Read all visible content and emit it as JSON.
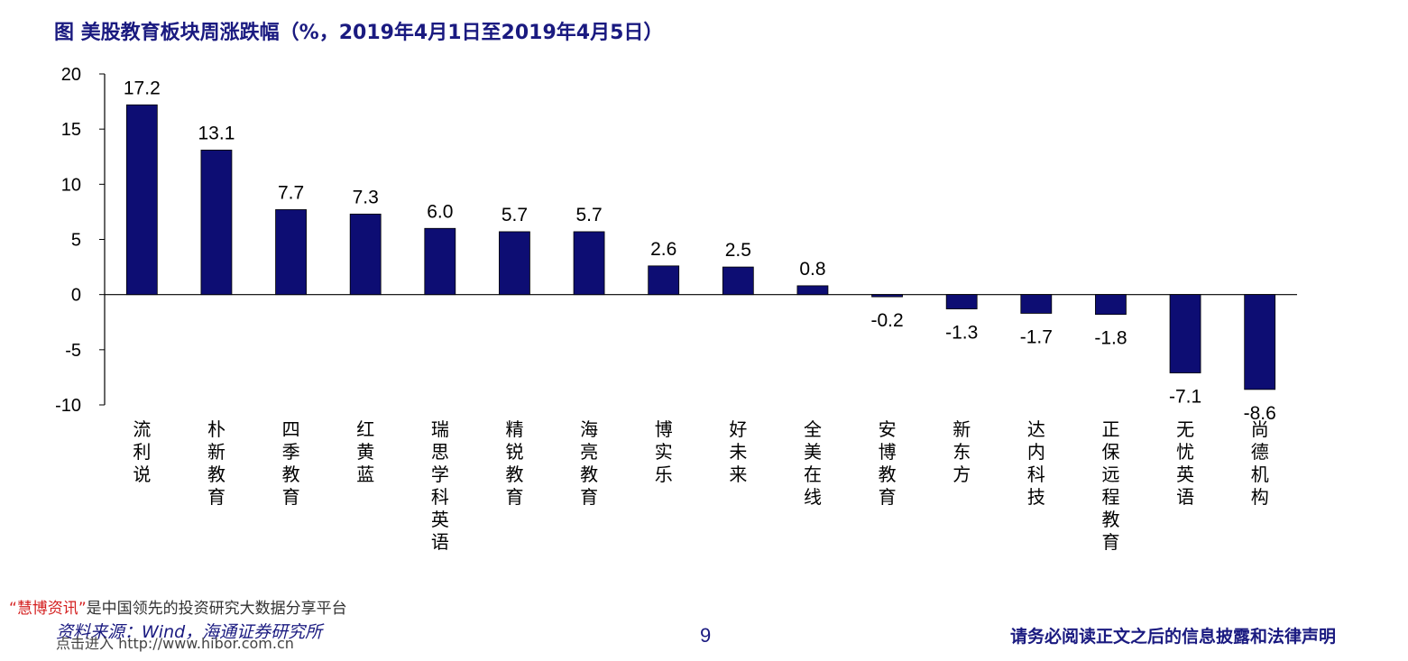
{
  "title": "图  美股教育板块周涨跌幅（%，2019年4月1日至2019年4月5日）",
  "chart_data": {
    "type": "bar",
    "categories": [
      "流利说",
      "朴新教育",
      "四季教育",
      "红黄蓝",
      "瑞思学科英语",
      "精锐教育",
      "海亮教育",
      "博实乐",
      "好未来",
      "全美在线",
      "安博教育",
      "新东方",
      "达内科技",
      "正保远程教育",
      "无忧英语",
      "尚德机构"
    ],
    "values": [
      17.2,
      13.1,
      7.7,
      7.3,
      6.0,
      5.7,
      5.7,
      2.6,
      2.5,
      0.8,
      -0.2,
      -1.3,
      -1.7,
      -1.8,
      -7.1,
      -8.6
    ],
    "value_labels": [
      "17.2",
      "13.1",
      "7.7",
      "7.3",
      "6.0",
      "5.7",
      "5.7",
      "2.6",
      "2.5",
      "0.8",
      "-0.2",
      "-1.3",
      "-1.7",
      "-1.8",
      "-7.1",
      "-8.6"
    ],
    "ylim": [
      -10,
      20
    ],
    "yticks": [
      20,
      15,
      10,
      5,
      0,
      -5,
      -10
    ],
    "bar_color": "#0d0d73",
    "grid": false,
    "xlabel": "",
    "ylabel": ""
  },
  "watermark": {
    "quote_open": "“",
    "brand": "慧博资讯",
    "quote_close": "”",
    "tagline": "是中国领先的投资研究大数据分享平台",
    "link": "点击进入 http://www.hibor.com.cn"
  },
  "footer": {
    "source": "资料来源：Wind，海通证券研究所",
    "page": "9",
    "disclaimer": "请务必阅读正文之后的信息披露和法律声明"
  }
}
